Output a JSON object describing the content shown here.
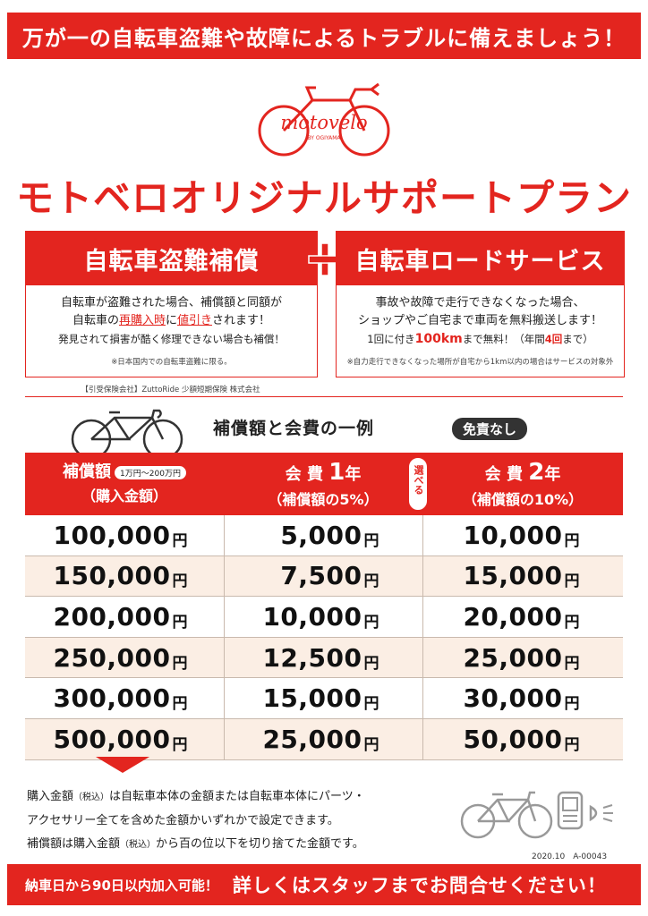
{
  "top_banner": "万が一の自転車盗難や故障によるトラブルに備えましょう！",
  "logo": {
    "text": "motovelo",
    "sub": "BY OGIYAMA"
  },
  "plan_title": "モトベロオリジナルサポートプラン",
  "theft": {
    "title": "自転車盗難補償",
    "line1": "自転車が盗難された場合、補償額と同額が",
    "line2_pre": "自転車の",
    "line2_red1": "再購入時",
    "line2_mid": "に",
    "line2_red2": "値引き",
    "line2_post": "されます！",
    "line3": "発見されて損害が酷く修理できない場合も補償！",
    "note": "※日本国内での自転車盗難に限る。"
  },
  "road": {
    "title": "自転車ロードサービス",
    "line1": "事故や故障で走行できなくなった場合、",
    "line2": "ショップやご自宅まで車両を無料搬送します！",
    "line3_pre": "1回に付き",
    "line3_red": "100km",
    "line3_mid": "まで無料！（年間",
    "line3_red2": "4回",
    "line3_post": "まで）",
    "note": "※自力走行できなくなった場所が自宅から1km以内の場合はサービスの対象外"
  },
  "underwriter": "【引受保険会社】ZuttoRide 少額短期保険 株式会社",
  "table_heading": "補償額と会費の一例",
  "no_deductible": "免責なし",
  "header": {
    "col1_title": "補償額",
    "col1_range": "1万円～200万円",
    "col1_sub": "（購入金額）",
    "col2_pre": "会 費",
    "col2_num": "1",
    "col2_unit": "年",
    "col2_sub": "（補償額の5%）",
    "col3_pre": "会 費",
    "col3_num": "2",
    "col3_unit": "年",
    "col3_sub": "（補償額の10%）",
    "choose": "選べる"
  },
  "yen": "円",
  "rows": [
    [
      "100,000",
      "5,000",
      "10,000"
    ],
    [
      "150,000",
      "7,500",
      "15,000"
    ],
    [
      "200,000",
      "10,000",
      "20,000"
    ],
    [
      "250,000",
      "12,500",
      "25,000"
    ],
    [
      "300,000",
      "15,000",
      "30,000"
    ],
    [
      "500,000",
      "25,000",
      "50,000"
    ]
  ],
  "notes": {
    "l1_a": "購入金額",
    "tax": "（税込）",
    "l1_b": "は自転車本体の金額または自転車本体にパーツ・",
    "l2": "アクセサリー全てを含めた金額かいずれかで設定できます。",
    "l3_a": "補償額は購入金額",
    "l3_b": "から百の位以下を切り捨てた金額です。"
  },
  "doc_code": "2020.10　A-00043",
  "bottom_banner": {
    "left": "納車日から90日以内加入可能！",
    "right": "詳しくはスタッフまでお問合せください！"
  },
  "colors": {
    "accent": "#e3251f",
    "row_alt": "#fbeee4"
  }
}
